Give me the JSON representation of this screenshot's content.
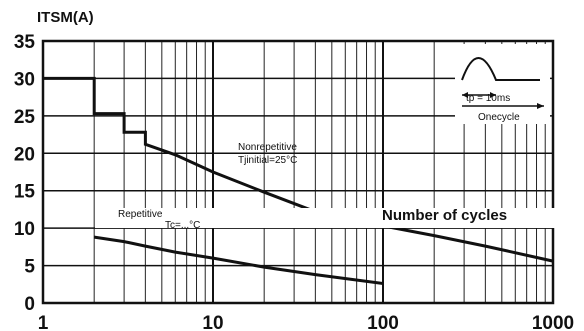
{
  "chart_data": {
    "type": "line",
    "title": "ITSM(A)",
    "xlabel": "Number of cycles",
    "ylabel": "",
    "x_scale": "log",
    "xlim": [
      1,
      1000
    ],
    "ylim": [
      0,
      35
    ],
    "x_ticks": [
      "1",
      "10",
      "100",
      "1000"
    ],
    "y_ticks": [
      "0",
      "5",
      "10",
      "15",
      "20",
      "25",
      "30",
      "35"
    ],
    "grid": true,
    "series": [
      {
        "name": "Nonrepetitive Tjinitial=25°C",
        "x": [
          1,
          2,
          2,
          3,
          3,
          4,
          4,
          6,
          10,
          20,
          40,
          100,
          200,
          400,
          1000
        ],
        "y": [
          30,
          30,
          25.3,
          25.3,
          22.8,
          22.8,
          21.2,
          19.8,
          17.5,
          14.8,
          12.2,
          10.3,
          9.0,
          7.6,
          5.6
        ]
      },
      {
        "name": "Repetitive",
        "x": [
          2,
          3,
          4,
          6,
          10,
          20,
          40,
          100
        ],
        "y": [
          8.8,
          8.2,
          7.6,
          6.8,
          6.0,
          4.8,
          3.8,
          2.6
        ]
      }
    ],
    "annotations": {
      "nonrepetitive_line1": "Nonrepetitive",
      "nonrepetitive_line2": "Tjinitial=25°C",
      "repetitive": "Repetitive",
      "repetitive_cond": "Tc=...°C",
      "pulse_label": "tp = 10ms",
      "cycle_label": "Onecycle"
    }
  }
}
